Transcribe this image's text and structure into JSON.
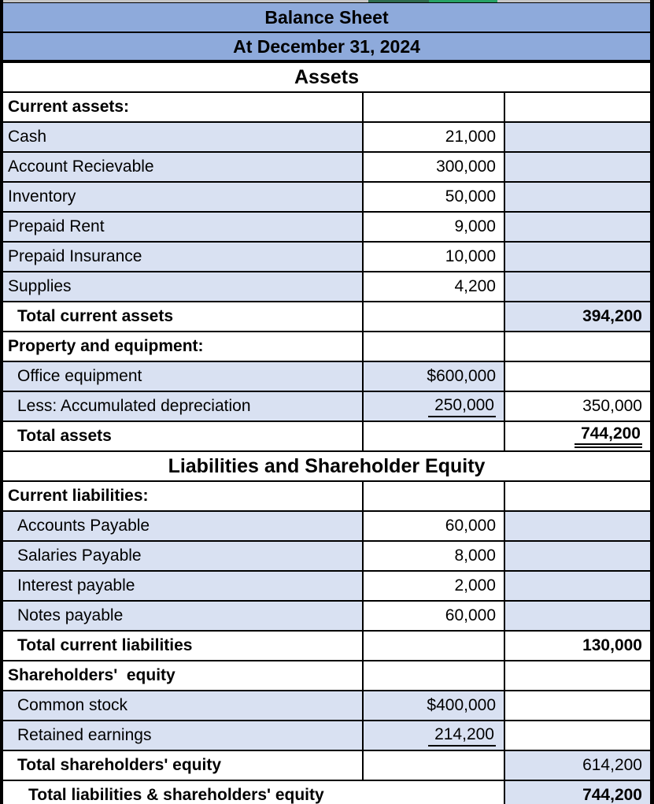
{
  "header": {
    "title": "Balance Sheet",
    "subtitle": "At December 31, 2024"
  },
  "colors": {
    "header_bg": "#8EAADB",
    "band_bg": "#D9E1F2",
    "border": "#000000",
    "strip_gray": "#C6C6C6",
    "strip_green_dark": "#2E6B4E",
    "strip_green_bright": "#27A265"
  },
  "table": {
    "rows": [
      {
        "label": "Assets",
        "merged": "all",
        "bg": "W",
        "name": "section-title-assets"
      },
      {
        "label": "Current assets:",
        "bold": true,
        "ind": 0,
        "bg": "WWW",
        "col2": "",
        "col3": ""
      },
      {
        "label": "Cash",
        "ind": 0,
        "bg": "LWL",
        "col2": "21,000",
        "col3": ""
      },
      {
        "label": "Account Recievable",
        "ind": 0,
        "bg": "LWL",
        "col2": "300,000",
        "col3": ""
      },
      {
        "label": "Inventory",
        "ind": 0,
        "bg": "LWL",
        "col2": "50,000",
        "col3": ""
      },
      {
        "label": "Prepaid Rent",
        "ind": 0,
        "bg": "LWL",
        "col2": "9,000",
        "col3": ""
      },
      {
        "label": "Prepaid Insurance",
        "ind": 0,
        "bg": "LWL",
        "col2": "10,000",
        "col3": ""
      },
      {
        "label": "Supplies",
        "ind": 0,
        "bg": "LWL",
        "col2": "4,200",
        "col3": ""
      },
      {
        "label": "Total current assets",
        "bold": true,
        "ind": 1,
        "bg": "WWL",
        "col2": "",
        "col3": "394,200",
        "b3": true
      },
      {
        "label": "Property and equipment:",
        "bold": true,
        "ind": 0,
        "bg": "WWW",
        "col2": "",
        "col3": ""
      },
      {
        "label": "Office equipment",
        "ind": 1,
        "bg": "LLW",
        "col2": "$600,000",
        "col3": ""
      },
      {
        "label": "Less: Accumulated depreciation",
        "ind": 1,
        "bg": "LLW",
        "col2": "250,000",
        "u2": "s",
        "col3": "350,000"
      },
      {
        "label": "Total assets",
        "bold": true,
        "ind": 1,
        "bg": "WWW",
        "col2": "",
        "col3": "744,200",
        "b3": true,
        "u3": "d"
      },
      {
        "label": "Liabilities and Shareholder Equity",
        "merged": "all",
        "bg": "W",
        "name": "section-title-liabilities-equity"
      },
      {
        "label": "Current liabilities:",
        "bold": true,
        "ind": 0,
        "bg": "WWW",
        "col2": "",
        "col3": ""
      },
      {
        "label": "Accounts Payable",
        "ind": 1,
        "bg": "LWL",
        "col2": "60,000",
        "col3": ""
      },
      {
        "label": "Salaries Payable",
        "ind": 1,
        "bg": "LWL",
        "col2": "8,000",
        "col3": ""
      },
      {
        "label": "Interest payable",
        "ind": 1,
        "bg": "LWL",
        "col2": "2,000",
        "col3": ""
      },
      {
        "label": "Notes payable",
        "ind": 1,
        "bg": "LWL",
        "col2": "60,000",
        "col3": ""
      },
      {
        "label": "Total current liabilities",
        "bold": true,
        "ind": 1,
        "bg": "WWW",
        "col2": "",
        "col3": "130,000",
        "b3": true
      },
      {
        "label": "Shareholders'  equity",
        "bold": true,
        "ind": 0,
        "bg": "WWW",
        "col2": "",
        "col3": ""
      },
      {
        "label": "Common stock",
        "ind": 1,
        "bg": "LLW",
        "col2": "$400,000",
        "col3": ""
      },
      {
        "label": "Retained earnings",
        "ind": 1,
        "bg": "LLW",
        "col2": "214,200",
        "u2": "s",
        "col3": ""
      },
      {
        "label": "Total shareholders' equity",
        "bold": true,
        "ind": 1,
        "bg": "WWL",
        "col2": "",
        "col3": "614,200"
      },
      {
        "label": "Total liabilities & shareholders' equity",
        "bold": true,
        "ind": 2,
        "merged": "label2",
        "bg": "WL",
        "col3": "744,200",
        "b3": true
      }
    ]
  }
}
